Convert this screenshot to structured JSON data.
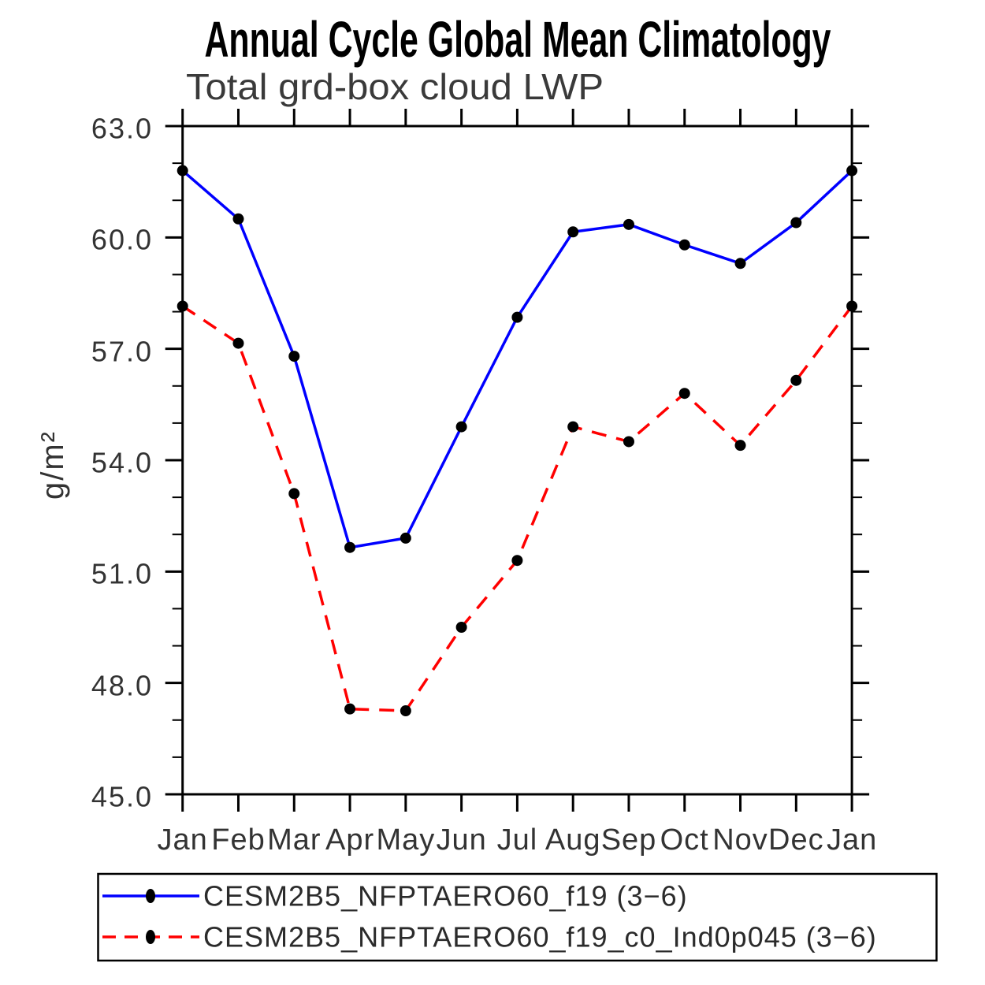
{
  "title": "Annual Cycle Global Mean Climatology",
  "subtitle": "Total grd-box cloud LWP",
  "chart_data": {
    "type": "line",
    "title": "Annual Cycle Global Mean Climatology",
    "subtitle": "Total grd-box cloud LWP",
    "ylabel": "g/m²",
    "xlabel": "",
    "ylim": [
      45.0,
      63.0
    ],
    "y_major_step": 3.0,
    "y_minor_step": 1.0,
    "y_tick_labels": [
      "63.0",
      "60.0",
      "57.0",
      "54.0",
      "51.0",
      "48.0",
      "45.0"
    ],
    "grid": "off",
    "legend_position": "bottom",
    "frame": "box-with-outward-ticks",
    "categories": [
      "Jan",
      "Feb",
      "Mar",
      "Apr",
      "May",
      "Jun",
      "Jul",
      "Aug",
      "Sep",
      "Oct",
      "Nov",
      "Dec",
      "Jan"
    ],
    "series": [
      {
        "name": "CESM2B5_NFPTAERO60_f19 (3−6)",
        "color": "#0000ff",
        "line_style": "solid",
        "marker": "filled-circle",
        "marker_color": "#000000",
        "values": [
          61.8,
          60.5,
          56.8,
          51.65,
          51.9,
          54.9,
          57.85,
          60.15,
          60.35,
          59.8,
          59.3,
          60.4,
          61.8
        ]
      },
      {
        "name": "CESM2B5_NFPTAERO60_f19_c0_Ind0p045 (3−6)",
        "color": "#ff0000",
        "line_style": "dashed",
        "marker": "filled-circle",
        "marker_color": "#000000",
        "values": [
          58.15,
          57.15,
          53.1,
          47.3,
          47.25,
          49.5,
          51.3,
          54.9,
          54.5,
          55.8,
          54.4,
          56.15,
          58.15
        ]
      }
    ],
    "axis_color": "#000000"
  }
}
